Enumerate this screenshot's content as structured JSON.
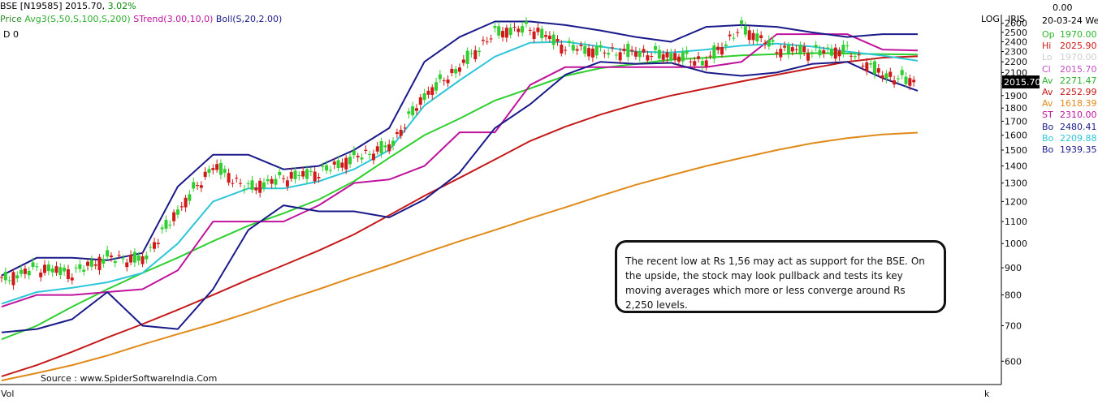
{
  "header": {
    "symbol": "BSE [N19585]",
    "price": "2015.70,",
    "change": "3.02%",
    "price_label": "Price",
    "avg_label": "Avg3(S,50,S,100,S,200)",
    "strend_label": "STrend(3.00,10,0)",
    "boll_label": "Boll(S,20,2.00)",
    "d0": "D 0",
    "log": "LOG",
    "iris": "IRIS",
    "top_value": "0.00"
  },
  "info_panel": {
    "date": "20-03-24 We",
    "rows": [
      {
        "label": "Op",
        "value": "1970.00",
        "color": "#2db52d"
      },
      {
        "label": "Hi",
        "value": "2025.90",
        "color": "#d01919"
      },
      {
        "label": "Lo",
        "value": "1970.00",
        "color": "#cfcfcf"
      },
      {
        "label": "Cl",
        "value": "2015.70",
        "color": "#c24fc2"
      },
      {
        "label": "Av",
        "value": "2271.47",
        "color": "#2db52d"
      },
      {
        "label": "Av",
        "value": "2252.99",
        "color": "#c41a1a"
      },
      {
        "label": "Av",
        "value": "1618.39",
        "color": "#e08a1a"
      },
      {
        "label": "ST",
        "value": "2310.00",
        "color": "#c0129c"
      },
      {
        "label": "Bo",
        "value": "2480.41",
        "color": "#1a1a8a"
      },
      {
        "label": "Bo",
        "value": "2209.88",
        "color": "#2ec6d9"
      },
      {
        "label": "Bo",
        "value": "1939.35",
        "color": "#1a1a8a"
      }
    ]
  },
  "annotation": "The recent low at Rs 1,56 may act as support for the BSE. On the upside, the stock may look pullback and tests its key moving averages which more or less converge around Rs 2,250 levels.",
  "source": "Source : www.SpiderSoftwareIndia.Com",
  "footer": {
    "vol": "Vol",
    "k": "k"
  },
  "chart_data": {
    "type": "line",
    "scale": "log",
    "ylim": [
      550,
      2700
    ],
    "y_ticks": [
      2600,
      2500,
      2400,
      2300,
      2200,
      2100,
      2000,
      1900,
      1800,
      1700,
      1600,
      1500,
      1400,
      1300,
      1200,
      1100,
      1000,
      900,
      800,
      700,
      600
    ],
    "last_price": "2015.70",
    "grid": false,
    "series": [
      {
        "name": "Avg 50",
        "color": "#2fcf2f",
        "values": [
          660,
          700,
          760,
          820,
          880,
          940,
          1010,
          1080,
          1140,
          1210,
          1310,
          1450,
          1600,
          1720,
          1860,
          1960,
          2070,
          2140,
          2180,
          2220,
          2240,
          2262,
          2275,
          2285,
          2280,
          2275,
          2271
        ]
      },
      {
        "name": "Avg 100",
        "color": "#c41a1a",
        "values": [
          562,
          590,
          625,
          665,
          705,
          750,
          800,
          855,
          910,
          970,
          1040,
          1130,
          1230,
          1330,
          1440,
          1560,
          1660,
          1750,
          1830,
          1900,
          1960,
          2020,
          2080,
          2140,
          2200,
          2240,
          2253
        ]
      },
      {
        "name": "Avg 200",
        "color": "#e08a1a",
        "values": [
          552,
          570,
          590,
          615,
          645,
          675,
          705,
          740,
          780,
          820,
          865,
          910,
          960,
          1010,
          1060,
          1115,
          1170,
          1230,
          1290,
          1345,
          1400,
          1450,
          1500,
          1545,
          1580,
          1605,
          1618
        ]
      },
      {
        "name": "STrend",
        "color": "#c0129c",
        "values": [
          760,
          800,
          800,
          810,
          820,
          890,
          1100,
          1100,
          1100,
          1180,
          1300,
          1320,
          1400,
          1620,
          1620,
          1990,
          2150,
          2150,
          2150,
          2150,
          2150,
          2200,
          2480,
          2480,
          2480,
          2320,
          2310
        ]
      },
      {
        "name": "Boll upper",
        "color": "#1a1a8a",
        "values": [
          870,
          940,
          940,
          930,
          960,
          1280,
          1470,
          1470,
          1380,
          1400,
          1500,
          1650,
          2200,
          2450,
          2620,
          2620,
          2580,
          2520,
          2450,
          2400,
          2560,
          2580,
          2560,
          2500,
          2450,
          2480,
          2480
        ]
      },
      {
        "name": "Boll mid",
        "color": "#2ec6d9",
        "values": [
          770,
          810,
          825,
          845,
          880,
          1000,
          1200,
          1270,
          1270,
          1310,
          1380,
          1500,
          1820,
          2030,
          2250,
          2390,
          2400,
          2350,
          2300,
          2290,
          2320,
          2360,
          2380,
          2350,
          2300,
          2260,
          2210
        ]
      },
      {
        "name": "Boll lower",
        "color": "#1a1a8a",
        "values": [
          680,
          690,
          720,
          810,
          700,
          690,
          820,
          1060,
          1180,
          1150,
          1150,
          1120,
          1210,
          1360,
          1650,
          1830,
          2080,
          2200,
          2180,
          2190,
          2100,
          2070,
          2100,
          2180,
          2200,
          2050,
          1940
        ]
      },
      {
        "name": "Price",
        "color": "#2e8b2e",
        "values": [
          850,
          900,
          880,
          940,
          930,
          1150,
          1400,
          1270,
          1330,
          1360,
          1450,
          1520,
          1900,
          2150,
          2500,
          2550,
          2350,
          2300,
          2290,
          2260,
          2200,
          2550,
          2330,
          2300,
          2310,
          2080,
          2015
        ]
      }
    ]
  }
}
